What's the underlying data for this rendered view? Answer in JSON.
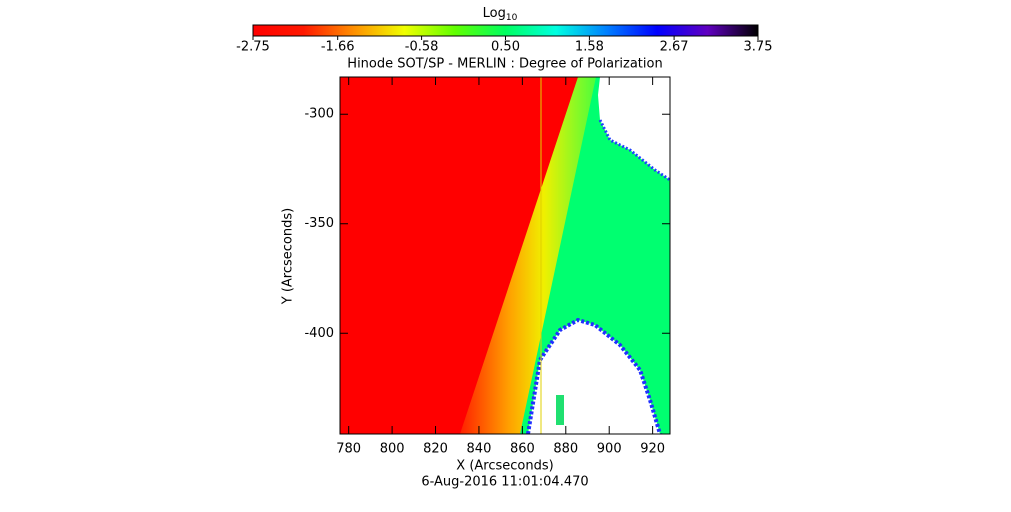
{
  "chart_data": {
    "type": "heatmap",
    "title": "Hinode SOT/SP - MERLIN : Degree of Polarization",
    "xlabel": "X (Arcseconds)",
    "ylabel": "Y (Arcseconds)",
    "footer": "6-Aug-2016 11:01:04.470",
    "colorbar_label": "Log",
    "colorbar_label_sub": "10",
    "clim": [
      -2.75,
      3.75
    ],
    "cticks": [
      -2.75,
      -1.66,
      -0.58,
      {
        "value": 0.5,
        "label": "0.50"
      },
      1.58,
      2.67,
      3.75
    ],
    "xlim": [
      776,
      928
    ],
    "xticks": [
      780,
      800,
      820,
      840,
      860,
      880,
      900,
      920
    ],
    "ylim": [
      -446,
      -283
    ],
    "yticks": [
      -300,
      -350,
      -400
    ]
  }
}
